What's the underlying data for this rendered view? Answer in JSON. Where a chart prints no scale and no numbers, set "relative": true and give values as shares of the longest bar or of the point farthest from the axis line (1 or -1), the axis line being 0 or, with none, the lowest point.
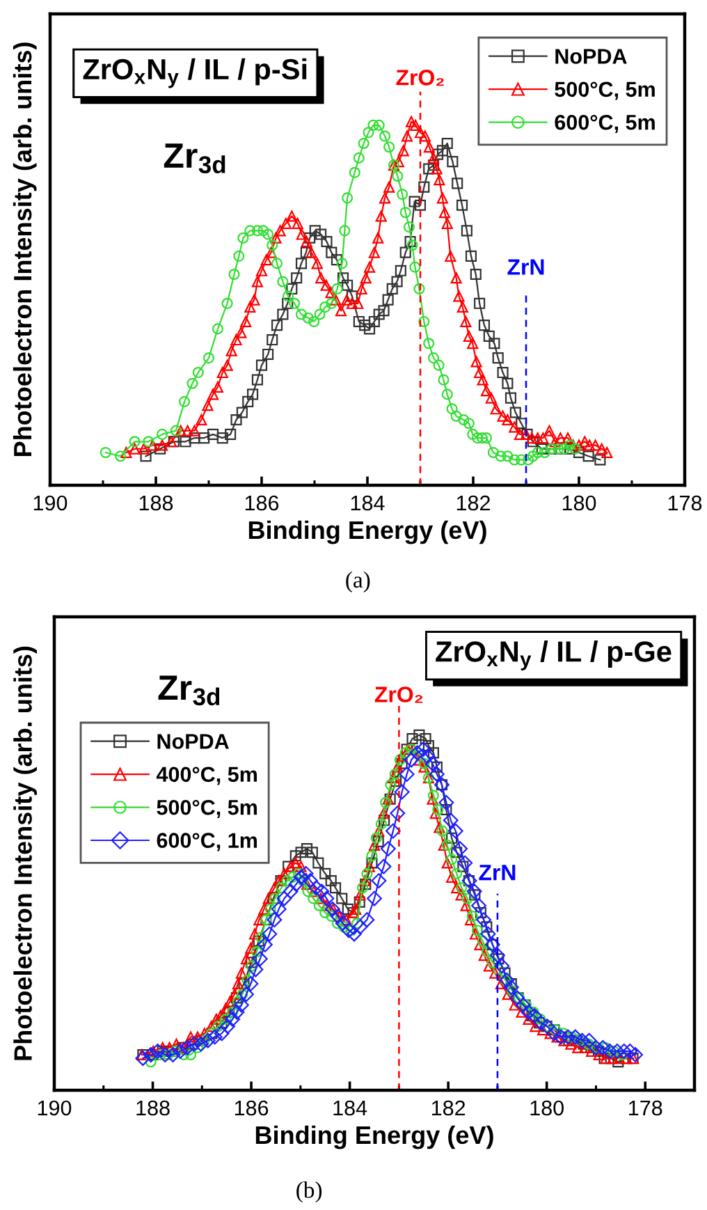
{
  "chart_data": [
    {
      "type": "line",
      "relative": true,
      "xlabel": "Binding Energy (eV)",
      "ylabel": "Photoelectron Intensity (arb. units)",
      "xlim": [
        190,
        178
      ],
      "xticks": [
        190,
        {
          "value": 189,
          "label": null
        },
        188,
        {
          "value": 187,
          "label": null
        },
        186,
        {
          "value": 185,
          "label": null
        },
        184,
        {
          "value": 183,
          "label": null
        },
        182,
        {
          "value": 181,
          "label": null
        },
        180,
        {
          "value": 179,
          "label": null
        },
        178
      ],
      "legend": "top right",
      "line_style": "solid",
      "ref_lines": [
        {
          "axis": "x",
          "value": 183,
          "label": "ZrO₂",
          "color": "#ff0000",
          "line_style": "dashed"
        },
        {
          "axis": "x",
          "value": 181,
          "label": "ZrN",
          "color": "#0000ff",
          "line_style": "dashed"
        }
      ],
      "annotations": [
        "ZrO$_{x}$N$_{y}$ / IL / p-Si",
        "Zr$_{3d}$",
        "(a)"
      ],
      "series": [
        {
          "name": "NoPDA",
          "color": "#333333",
          "marker": "square",
          "x": [
            188.19,
            187.92,
            187.66,
            187.44,
            187.27,
            187.09,
            186.92,
            186.74,
            186.59,
            186.48,
            186.37,
            186.26,
            186.17,
            186.08,
            186.0,
            185.88,
            185.8,
            185.71,
            185.6,
            185.51,
            185.43,
            185.34,
            185.25,
            185.16,
            185.09,
            184.99,
            184.88,
            184.77,
            184.68,
            184.58,
            184.46,
            184.38,
            184.29,
            184.16,
            184.05,
            183.96,
            183.87,
            183.78,
            183.69,
            183.61,
            183.53,
            183.44,
            183.37,
            183.28,
            183.19,
            183.11,
            183.0,
            182.93,
            182.84,
            182.75,
            182.67,
            182.58,
            182.49,
            182.39,
            182.3,
            182.21,
            182.12,
            182.04,
            181.95,
            181.88,
            181.79,
            181.7,
            181.6,
            181.53,
            181.44,
            181.35,
            181.29,
            181.2,
            181.09,
            180.98,
            180.87,
            180.7,
            180.52,
            180.35,
            180.17,
            180.0,
            179.82,
            179.6
          ],
          "values": [
            0.08,
            0.1,
            0.12,
            0.12,
            0.13,
            0.13,
            0.14,
            0.13,
            0.14,
            0.18,
            0.2,
            0.23,
            0.25,
            0.29,
            0.33,
            0.36,
            0.4,
            0.44,
            0.47,
            0.5,
            0.54,
            0.57,
            0.61,
            0.64,
            0.68,
            0.7,
            0.69,
            0.67,
            0.64,
            0.62,
            0.57,
            0.55,
            0.52,
            0.45,
            0.44,
            0.43,
            0.45,
            0.47,
            0.48,
            0.51,
            0.54,
            0.56,
            0.59,
            0.64,
            0.67,
            0.78,
            0.77,
            0.82,
            0.87,
            0.88,
            0.91,
            0.92,
            0.94,
            0.89,
            0.83,
            0.77,
            0.7,
            0.63,
            0.58,
            0.5,
            0.44,
            0.41,
            0.39,
            0.35,
            0.31,
            0.28,
            0.24,
            0.2,
            0.17,
            0.14,
            0.12,
            0.1,
            0.1,
            0.1,
            0.1,
            0.09,
            0.08,
            0.07
          ]
        },
        {
          "name": "500°C, 5m",
          "color": "#ff0000",
          "marker": "triangle",
          "x": [
            188.56,
            188.4,
            188.23,
            188.06,
            187.88,
            187.71,
            187.53,
            187.4,
            187.27,
            187.14,
            187.02,
            186.92,
            186.83,
            186.74,
            186.65,
            186.57,
            186.48,
            186.39,
            186.3,
            186.22,
            186.14,
            186.08,
            186.0,
            185.91,
            185.82,
            185.73,
            185.65,
            185.54,
            185.43,
            185.32,
            185.24,
            185.15,
            185.06,
            184.95,
            184.88,
            184.78,
            184.69,
            184.6,
            184.5,
            184.39,
            184.29,
            184.18,
            184.11,
            184.03,
            183.96,
            183.87,
            183.8,
            183.74,
            183.67,
            183.59,
            183.5,
            183.41,
            183.32,
            183.25,
            183.17,
            183.09,
            183.0,
            182.91,
            182.83,
            182.75,
            182.69,
            182.64,
            182.58,
            182.54,
            182.49,
            182.43,
            182.32,
            182.27,
            182.2,
            182.14,
            182.08,
            182.01,
            181.94,
            181.88,
            181.82,
            181.75,
            181.66,
            181.57,
            181.44,
            181.35,
            181.22,
            181.12,
            181.0,
            180.89,
            180.78,
            180.68,
            180.56,
            180.45,
            180.35,
            180.21,
            180.11,
            180.0,
            179.89,
            179.8,
            179.69,
            179.57,
            179.47
          ],
          "values": [
            0.09,
            0.1,
            0.1,
            0.11,
            0.11,
            0.12,
            0.15,
            0.15,
            0.15,
            0.18,
            0.22,
            0.25,
            0.27,
            0.31,
            0.33,
            0.37,
            0.4,
            0.42,
            0.45,
            0.49,
            0.51,
            0.56,
            0.59,
            0.62,
            0.64,
            0.68,
            0.7,
            0.72,
            0.74,
            0.72,
            0.69,
            0.67,
            0.64,
            0.61,
            0.57,
            0.55,
            0.53,
            0.51,
            0.48,
            0.51,
            0.5,
            0.5,
            0.54,
            0.57,
            0.6,
            0.64,
            0.68,
            0.74,
            0.79,
            0.82,
            0.88,
            0.89,
            0.92,
            0.96,
            1.0,
            0.99,
            0.97,
            0.96,
            0.93,
            0.9,
            0.87,
            0.84,
            0.79,
            0.75,
            0.72,
            0.63,
            0.57,
            0.52,
            0.49,
            0.45,
            0.41,
            0.39,
            0.34,
            0.31,
            0.29,
            0.26,
            0.24,
            0.21,
            0.19,
            0.18,
            0.16,
            0.14,
            0.14,
            0.13,
            0.13,
            0.13,
            0.15,
            0.12,
            0.13,
            0.13,
            0.11,
            0.11,
            0.12,
            0.11,
            0.11,
            0.1,
            0.09
          ]
        },
        {
          "name": "600°C, 5m",
          "color": "#33dd33",
          "marker": "circle",
          "x": [
            188.95,
            188.67,
            188.4,
            188.14,
            187.88,
            187.62,
            187.46,
            187.31,
            187.2,
            187.0,
            186.83,
            186.65,
            186.52,
            186.43,
            186.35,
            186.22,
            186.08,
            185.97,
            185.88,
            185.8,
            185.71,
            185.6,
            185.5,
            185.38,
            185.25,
            185.12,
            185.01,
            184.9,
            184.8,
            184.68,
            184.57,
            184.48,
            184.43,
            184.38,
            184.24,
            184.16,
            184.07,
            183.98,
            183.89,
            183.78,
            183.67,
            183.59,
            183.5,
            183.43,
            183.34,
            183.28,
            183.21,
            183.15,
            183.1,
            183.02,
            182.93,
            182.84,
            182.75,
            182.65,
            182.56,
            182.49,
            182.4,
            182.32,
            182.18,
            182.08,
            182.01,
            181.92,
            181.83,
            181.75,
            181.62,
            181.48,
            181.35,
            181.22,
            181.09,
            180.96,
            180.87,
            180.78,
            180.65,
            180.52,
            180.39,
            180.28,
            180.17,
            180.07
          ],
          "values": [
            0.09,
            0.08,
            0.12,
            0.12,
            0.14,
            0.15,
            0.23,
            0.28,
            0.31,
            0.35,
            0.43,
            0.5,
            0.58,
            0.63,
            0.68,
            0.7,
            0.7,
            0.7,
            0.69,
            0.66,
            0.61,
            0.56,
            0.52,
            0.5,
            0.47,
            0.46,
            0.45,
            0.47,
            0.49,
            0.5,
            0.54,
            0.61,
            0.7,
            0.79,
            0.86,
            0.9,
            0.94,
            0.97,
            0.99,
            0.99,
            0.96,
            0.93,
            0.88,
            0.85,
            0.8,
            0.75,
            0.71,
            0.66,
            0.6,
            0.54,
            0.45,
            0.39,
            0.35,
            0.33,
            0.29,
            0.25,
            0.21,
            0.19,
            0.18,
            0.17,
            0.14,
            0.13,
            0.13,
            0.13,
            0.09,
            0.08,
            0.08,
            0.07,
            0.07,
            0.07,
            0.08,
            0.09,
            0.09,
            0.1,
            0.1,
            0.1,
            0.11,
            0.1
          ]
        }
      ]
    },
    {
      "type": "line",
      "relative": true,
      "xlabel": "Binding Energy (eV)",
      "ylabel": "Photoelectron Intensity (arb. units)",
      "xlim": [
        190,
        177
      ],
      "xticks": [
        190,
        {
          "value": 189,
          "label": null
        },
        188,
        {
          "value": 187,
          "label": null
        },
        186,
        {
          "value": 185,
          "label": null
        },
        184,
        {
          "value": 183,
          "label": null
        },
        182,
        {
          "value": 181,
          "label": null
        },
        180,
        {
          "value": 179,
          "label": null
        },
        178
      ],
      "legend": "top left",
      "line_style": "solid",
      "ref_lines": [
        {
          "axis": "x",
          "value": 183,
          "label": "ZrO₂",
          "color": "#ff0000",
          "line_style": "dashed"
        },
        {
          "axis": "x",
          "value": 181,
          "label": "ZrN",
          "color": "#0000ff",
          "line_style": "dashed"
        }
      ],
      "annotations": [
        "ZrO$_{x}$N$_{y}$ / IL / p-Ge",
        "Zr$_{3d}$",
        "(b)"
      ],
      "series": [
        {
          "name": "NoPDA",
          "color": "#333333",
          "marker": "square",
          "x": [
            188.2,
            188.0,
            187.8,
            187.6,
            187.4,
            187.2,
            187.0,
            186.8,
            186.6,
            186.45,
            186.3,
            186.15,
            186.0,
            185.85,
            185.7,
            185.55,
            185.4,
            185.25,
            185.1,
            184.99,
            184.87,
            184.76,
            184.64,
            184.5,
            184.38,
            184.29,
            184.16,
            184.04,
            183.93,
            183.8,
            183.68,
            183.55,
            183.42,
            183.3,
            183.18,
            183.06,
            182.94,
            182.84,
            182.73,
            182.59,
            182.46,
            182.4,
            182.3,
            182.23,
            182.13,
            182.04,
            181.93,
            181.83,
            181.7,
            181.58,
            181.46,
            181.34,
            181.22,
            181.1,
            180.98,
            180.85,
            180.72,
            180.58,
            180.44,
            180.3,
            180.15,
            180.0,
            179.85,
            179.7,
            179.55,
            179.4,
            179.25,
            179.1,
            178.95,
            178.83,
            178.7,
            178.55,
            178.4,
            178.25
          ],
          "values": [
            0.1,
            0.1,
            0.11,
            0.11,
            0.12,
            0.13,
            0.14,
            0.16,
            0.19,
            0.22,
            0.26,
            0.3,
            0.36,
            0.42,
            0.48,
            0.54,
            0.59,
            0.63,
            0.66,
            0.67,
            0.68,
            0.67,
            0.64,
            0.61,
            0.59,
            0.57,
            0.54,
            0.51,
            0.5,
            0.53,
            0.58,
            0.64,
            0.7,
            0.76,
            0.82,
            0.87,
            0.92,
            0.96,
            0.99,
            1.0,
            0.99,
            0.97,
            0.95,
            0.91,
            0.86,
            0.79,
            0.71,
            0.67,
            0.63,
            0.59,
            0.55,
            0.5,
            0.46,
            0.41,
            0.37,
            0.33,
            0.3,
            0.26,
            0.24,
            0.21,
            0.19,
            0.18,
            0.17,
            0.15,
            0.14,
            0.14,
            0.13,
            0.12,
            0.11,
            0.09,
            0.09,
            0.08,
            0.09,
            0.09
          ]
        },
        {
          "name": "400°C, 5m",
          "color": "#ff0000",
          "marker": "triangle",
          "x": [
            188.22,
            187.99,
            187.8,
            187.66,
            187.52,
            187.37,
            187.23,
            187.09,
            186.95,
            186.81,
            186.71,
            186.62,
            186.52,
            186.43,
            186.34,
            186.27,
            186.2,
            186.1,
            186.01,
            185.93,
            185.84,
            185.74,
            185.65,
            185.53,
            185.44,
            185.33,
            185.2,
            185.1,
            184.99,
            184.87,
            184.73,
            184.59,
            184.48,
            184.34,
            184.21,
            184.07,
            183.93,
            183.88,
            183.79,
            183.69,
            183.6,
            183.5,
            183.41,
            183.31,
            183.22,
            183.12,
            183.03,
            182.94,
            182.82,
            182.7,
            182.59,
            182.49,
            182.4,
            182.32,
            182.26,
            182.18,
            182.09,
            182.02,
            181.93,
            181.83,
            181.74,
            181.64,
            181.55,
            181.45,
            181.36,
            181.27,
            181.17,
            181.05,
            180.93,
            180.79,
            180.65,
            180.51,
            180.37,
            180.23,
            180.08,
            179.93,
            179.79,
            179.65,
            179.51,
            179.37,
            179.23,
            179.09,
            178.94,
            178.8,
            178.66,
            178.52,
            178.38,
            178.24
          ],
          "values": [
            0.1,
            0.11,
            0.12,
            0.12,
            0.13,
            0.12,
            0.15,
            0.15,
            0.16,
            0.18,
            0.2,
            0.21,
            0.23,
            0.25,
            0.27,
            0.3,
            0.33,
            0.37,
            0.4,
            0.44,
            0.48,
            0.51,
            0.54,
            0.57,
            0.59,
            0.61,
            0.63,
            0.64,
            0.63,
            0.58,
            0.56,
            0.54,
            0.52,
            0.51,
            0.49,
            0.48,
            0.5,
            0.51,
            0.55,
            0.59,
            0.63,
            0.69,
            0.73,
            0.78,
            0.82,
            0.88,
            0.91,
            0.94,
            0.96,
            0.96,
            0.93,
            0.91,
            0.88,
            0.82,
            0.78,
            0.74,
            0.69,
            0.64,
            0.6,
            0.57,
            0.55,
            0.52,
            0.48,
            0.44,
            0.41,
            0.38,
            0.35,
            0.33,
            0.3,
            0.27,
            0.24,
            0.22,
            0.2,
            0.18,
            0.17,
            0.16,
            0.15,
            0.14,
            0.13,
            0.12,
            0.12,
            0.11,
            0.1,
            0.09,
            0.09,
            0.09,
            0.09,
            0.09
          ]
        },
        {
          "name": "500°C, 5m",
          "color": "#33dd33",
          "marker": "circle",
          "x": [
            188.04,
            187.85,
            187.69,
            187.54,
            187.37,
            187.23,
            187.09,
            186.95,
            186.81,
            186.67,
            186.52,
            186.38,
            186.27,
            186.18,
            186.08,
            185.99,
            185.89,
            185.8,
            185.7,
            185.61,
            185.52,
            185.39,
            185.27,
            185.16,
            185.04,
            184.95,
            184.85,
            184.74,
            184.62,
            184.5,
            184.37,
            184.25,
            184.12,
            183.97,
            183.85,
            183.74,
            183.65,
            183.55,
            183.46,
            183.36,
            183.27,
            183.17,
            183.08,
            182.98,
            182.87,
            182.75,
            182.61,
            182.49,
            182.4,
            182.3,
            182.21,
            182.12,
            182.02,
            181.93,
            181.83,
            181.73,
            181.61,
            181.51,
            181.41,
            181.3,
            181.21,
            181.1,
            180.98,
            180.84,
            180.7,
            180.56,
            180.42,
            180.27,
            180.13,
            179.98,
            179.82,
            179.66,
            179.49,
            179.32,
            179.15,
            178.98,
            178.81,
            178.64,
            178.47
          ],
          "values": [
            0.08,
            0.1,
            0.1,
            0.11,
            0.1,
            0.1,
            0.12,
            0.14,
            0.16,
            0.18,
            0.2,
            0.22,
            0.25,
            0.27,
            0.31,
            0.35,
            0.39,
            0.43,
            0.48,
            0.51,
            0.54,
            0.57,
            0.59,
            0.6,
            0.61,
            0.59,
            0.56,
            0.54,
            0.52,
            0.5,
            0.49,
            0.47,
            0.46,
            0.45,
            0.47,
            0.57,
            0.61,
            0.66,
            0.71,
            0.75,
            0.81,
            0.86,
            0.89,
            0.93,
            0.95,
            0.96,
            0.95,
            0.92,
            0.88,
            0.83,
            0.79,
            0.73,
            0.69,
            0.65,
            0.61,
            0.57,
            0.54,
            0.49,
            0.45,
            0.42,
            0.39,
            0.36,
            0.34,
            0.31,
            0.28,
            0.26,
            0.24,
            0.22,
            0.2,
            0.18,
            0.17,
            0.16,
            0.15,
            0.14,
            0.13,
            0.12,
            0.12,
            0.11,
            0.1
          ]
        },
        {
          "name": "600°C, 1m",
          "color": "#2020ff",
          "marker": "diamond",
          "x": [
            188.2,
            188.04,
            187.9,
            187.75,
            187.59,
            187.44,
            187.3,
            187.16,
            187.02,
            186.88,
            186.74,
            186.6,
            186.48,
            186.38,
            186.29,
            186.2,
            186.1,
            186.01,
            185.91,
            185.82,
            185.72,
            185.63,
            185.53,
            185.44,
            185.33,
            185.2,
            185.09,
            184.99,
            184.89,
            184.8,
            184.68,
            184.57,
            184.47,
            184.35,
            184.24,
            184.14,
            184.02,
            183.91,
            183.79,
            183.65,
            183.5,
            183.41,
            183.31,
            183.22,
            183.12,
            183.03,
            182.94,
            182.84,
            182.75,
            182.63,
            182.51,
            182.42,
            182.32,
            182.23,
            182.13,
            182.04,
            181.95,
            181.85,
            181.76,
            181.66,
            181.57,
            181.47,
            181.38,
            181.28,
            181.19,
            181.1,
            181.0,
            180.91,
            180.81,
            180.72,
            180.6,
            180.48,
            180.37,
            180.25,
            180.12,
            179.99,
            179.85,
            179.71,
            179.57,
            179.42,
            179.28,
            179.14,
            179.0,
            178.86,
            178.72,
            178.57,
            178.43,
            178.31,
            178.2
          ],
          "values": [
            0.09,
            0.1,
            0.11,
            0.1,
            0.1,
            0.11,
            0.12,
            0.13,
            0.13,
            0.14,
            0.15,
            0.16,
            0.18,
            0.2,
            0.22,
            0.24,
            0.27,
            0.3,
            0.34,
            0.37,
            0.41,
            0.44,
            0.48,
            0.51,
            0.54,
            0.56,
            0.58,
            0.6,
            0.61,
            0.59,
            0.57,
            0.56,
            0.54,
            0.51,
            0.49,
            0.47,
            0.45,
            0.44,
            0.46,
            0.48,
            0.54,
            0.59,
            0.63,
            0.68,
            0.73,
            0.78,
            0.84,
            0.89,
            0.93,
            0.95,
            0.96,
            0.94,
            0.92,
            0.89,
            0.86,
            0.81,
            0.76,
            0.73,
            0.68,
            0.64,
            0.59,
            0.56,
            0.52,
            0.48,
            0.44,
            0.41,
            0.38,
            0.35,
            0.31,
            0.29,
            0.26,
            0.24,
            0.22,
            0.21,
            0.19,
            0.18,
            0.16,
            0.15,
            0.15,
            0.15,
            0.14,
            0.14,
            0.12,
            0.12,
            0.11,
            0.11,
            0.11,
            0.11,
            0.1
          ]
        }
      ]
    }
  ]
}
